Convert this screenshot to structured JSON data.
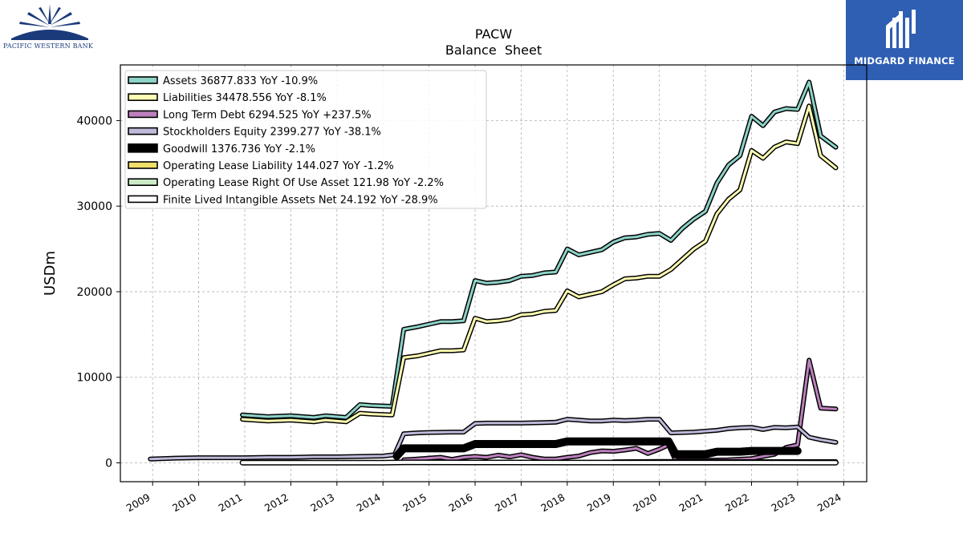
{
  "logos": {
    "left_text": "PACIFIC WESTERN BANK",
    "right_text": "MIDGARD FINANCE",
    "left_color": "#1a3a7a",
    "right_bg": "#2f5fb3"
  },
  "chart_data": {
    "type": "line",
    "title": "PACW",
    "subtitle": "Balance  Sheet",
    "ylabel": "USDm",
    "xlabel": "",
    "xlim": [
      2008.3,
      2024.5
    ],
    "ylim": [
      -2200,
      46500
    ],
    "xticks": [
      2009,
      2010,
      2011,
      2012,
      2013,
      2014,
      2015,
      2016,
      2017,
      2018,
      2019,
      2020,
      2021,
      2022,
      2023,
      2024
    ],
    "yticks": [
      0,
      10000,
      20000,
      30000,
      40000
    ],
    "grid": true,
    "legend_position": "top-left",
    "series": [
      {
        "name": "Assets",
        "legend": "Assets  36877.833 YoY -10.9%",
        "color": "#8dd3c7",
        "width": 3,
        "points": [
          [
            2010.95,
            5600
          ],
          [
            2011.5,
            5400
          ],
          [
            2012,
            5500
          ],
          [
            2012.5,
            5300
          ],
          [
            2012.75,
            5500
          ],
          [
            2013.2,
            5300
          ],
          [
            2013.5,
            6800
          ],
          [
            2013.75,
            6700
          ],
          [
            2014.2,
            6600
          ],
          [
            2014.45,
            15600
          ],
          [
            2014.75,
            15900
          ],
          [
            2015,
            16200
          ],
          [
            2015.25,
            16500
          ],
          [
            2015.5,
            16500
          ],
          [
            2015.75,
            16600
          ],
          [
            2016,
            21300
          ],
          [
            2016.25,
            21000
          ],
          [
            2016.5,
            21100
          ],
          [
            2016.75,
            21300
          ],
          [
            2017,
            21800
          ],
          [
            2017.25,
            21900
          ],
          [
            2017.5,
            22200
          ],
          [
            2017.75,
            22300
          ],
          [
            2018,
            25000
          ],
          [
            2018.25,
            24300
          ],
          [
            2018.5,
            24600
          ],
          [
            2018.75,
            24900
          ],
          [
            2019,
            25800
          ],
          [
            2019.25,
            26300
          ],
          [
            2019.5,
            26400
          ],
          [
            2019.75,
            26700
          ],
          [
            2020,
            26800
          ],
          [
            2020.25,
            26000
          ],
          [
            2020.5,
            27400
          ],
          [
            2020.75,
            28500
          ],
          [
            2021,
            29400
          ],
          [
            2021.25,
            32700
          ],
          [
            2021.5,
            34800
          ],
          [
            2021.75,
            35900
          ],
          [
            2022,
            40500
          ],
          [
            2022.25,
            39400
          ],
          [
            2022.5,
            41000
          ],
          [
            2022.75,
            41400
          ],
          [
            2023,
            41300
          ],
          [
            2023.25,
            44500
          ],
          [
            2023.5,
            38200
          ],
          [
            2023.83,
            36878
          ]
        ]
      },
      {
        "name": "Liabilities",
        "legend": "Liabilities  34478.556 YoY -8.1%",
        "color": "#ffffb3",
        "width": 3,
        "points": [
          [
            2010.95,
            5100
          ],
          [
            2011.5,
            4900
          ],
          [
            2012,
            5000
          ],
          [
            2012.5,
            4800
          ],
          [
            2012.75,
            5000
          ],
          [
            2013.2,
            4800
          ],
          [
            2013.5,
            5800
          ],
          [
            2013.75,
            5700
          ],
          [
            2014.2,
            5600
          ],
          [
            2014.45,
            12300
          ],
          [
            2014.75,
            12500
          ],
          [
            2015,
            12800
          ],
          [
            2015.25,
            13100
          ],
          [
            2015.5,
            13100
          ],
          [
            2015.75,
            13200
          ],
          [
            2016,
            16900
          ],
          [
            2016.25,
            16500
          ],
          [
            2016.5,
            16600
          ],
          [
            2016.75,
            16800
          ],
          [
            2017,
            17300
          ],
          [
            2017.25,
            17400
          ],
          [
            2017.5,
            17700
          ],
          [
            2017.75,
            17800
          ],
          [
            2018,
            20100
          ],
          [
            2018.25,
            19400
          ],
          [
            2018.5,
            19700
          ],
          [
            2018.75,
            20000
          ],
          [
            2019,
            20800
          ],
          [
            2019.25,
            21500
          ],
          [
            2019.5,
            21600
          ],
          [
            2019.75,
            21800
          ],
          [
            2020,
            21800
          ],
          [
            2020.25,
            22600
          ],
          [
            2020.5,
            23800
          ],
          [
            2020.75,
            25000
          ],
          [
            2021,
            25900
          ],
          [
            2021.25,
            29100
          ],
          [
            2021.5,
            30800
          ],
          [
            2021.75,
            31900
          ],
          [
            2022,
            36500
          ],
          [
            2022.25,
            35600
          ],
          [
            2022.5,
            36900
          ],
          [
            2022.75,
            37500
          ],
          [
            2023,
            37300
          ],
          [
            2023.25,
            41700
          ],
          [
            2023.5,
            35900
          ],
          [
            2023.83,
            34479
          ]
        ]
      },
      {
        "name": "Long Term Debt",
        "legend": "Long Term Debt  6294.525 YoY +237.5%",
        "color": "#bc80bd",
        "width": 3,
        "points": [
          [
            2014.45,
            350
          ],
          [
            2014.75,
            450
          ],
          [
            2015,
            550
          ],
          [
            2015.25,
            650
          ],
          [
            2015.5,
            400
          ],
          [
            2015.75,
            650
          ],
          [
            2016,
            750
          ],
          [
            2016.25,
            650
          ],
          [
            2016.5,
            900
          ],
          [
            2016.75,
            700
          ],
          [
            2017,
            950
          ],
          [
            2017.25,
            650
          ],
          [
            2017.5,
            450
          ],
          [
            2017.75,
            450
          ],
          [
            2018,
            650
          ],
          [
            2018.25,
            800
          ],
          [
            2018.5,
            1200
          ],
          [
            2018.75,
            1400
          ],
          [
            2019,
            1350
          ],
          [
            2019.25,
            1500
          ],
          [
            2019.5,
            1700
          ],
          [
            2019.75,
            1100
          ],
          [
            2020,
            1600
          ],
          [
            2020.2,
            2100
          ],
          [
            2020.35,
            300
          ],
          [
            2021,
            300
          ],
          [
            2021.5,
            350
          ],
          [
            2022,
            500
          ],
          [
            2022.5,
            1000
          ],
          [
            2022.75,
            1800
          ],
          [
            2023,
            2100
          ],
          [
            2023.25,
            12000
          ],
          [
            2023.5,
            6400
          ],
          [
            2023.83,
            6295
          ]
        ]
      },
      {
        "name": "Stockholders Equity",
        "legend": "Stockholders Equity  2399.277 YoY -38.1%",
        "color": "#bebada",
        "width": 3,
        "points": [
          [
            2008.95,
            450
          ],
          [
            2009.5,
            550
          ],
          [
            2010,
            600
          ],
          [
            2010.5,
            600
          ],
          [
            2011,
            600
          ],
          [
            2011.5,
            650
          ],
          [
            2012,
            650
          ],
          [
            2012.5,
            700
          ],
          [
            2013,
            700
          ],
          [
            2013.5,
            750
          ],
          [
            2014,
            800
          ],
          [
            2014.25,
            950
          ],
          [
            2014.45,
            3400
          ],
          [
            2014.75,
            3500
          ],
          [
            2015,
            3550
          ],
          [
            2015.5,
            3600
          ],
          [
            2015.75,
            3600
          ],
          [
            2016,
            4600
          ],
          [
            2016.25,
            4650
          ],
          [
            2016.5,
            4650
          ],
          [
            2016.75,
            4650
          ],
          [
            2017,
            4650
          ],
          [
            2017.5,
            4700
          ],
          [
            2017.75,
            4750
          ],
          [
            2018,
            5100
          ],
          [
            2018.25,
            5000
          ],
          [
            2018.5,
            4900
          ],
          [
            2018.75,
            4900
          ],
          [
            2019,
            5000
          ],
          [
            2019.25,
            4950
          ],
          [
            2019.5,
            5000
          ],
          [
            2019.75,
            5100
          ],
          [
            2020,
            5100
          ],
          [
            2020.25,
            3500
          ],
          [
            2020.5,
            3550
          ],
          [
            2020.75,
            3600
          ],
          [
            2021,
            3700
          ],
          [
            2021.25,
            3800
          ],
          [
            2021.5,
            4000
          ],
          [
            2021.75,
            4100
          ],
          [
            2022,
            4150
          ],
          [
            2022.25,
            3900
          ],
          [
            2022.5,
            4150
          ],
          [
            2022.75,
            4100
          ],
          [
            2023,
            4200
          ],
          [
            2023.25,
            3000
          ],
          [
            2023.5,
            2700
          ],
          [
            2023.83,
            2399
          ]
        ]
      },
      {
        "name": "Goodwill",
        "legend": "Goodwill  1376.736 YoY -2.1%",
        "color": "#000000",
        "width": 7,
        "outline": "#000000",
        "points": [
          [
            2014.3,
            800
          ],
          [
            2014.45,
            1700
          ],
          [
            2015,
            1700
          ],
          [
            2015.5,
            1700
          ],
          [
            2015.75,
            1700
          ],
          [
            2016,
            2200
          ],
          [
            2016.5,
            2200
          ],
          [
            2017,
            2200
          ],
          [
            2017.5,
            2200
          ],
          [
            2017.75,
            2200
          ],
          [
            2018,
            2500
          ],
          [
            2018.5,
            2500
          ],
          [
            2019,
            2500
          ],
          [
            2019.5,
            2500
          ],
          [
            2020,
            2500
          ],
          [
            2020.2,
            2500
          ],
          [
            2020.35,
            1000
          ],
          [
            2021,
            1000
          ],
          [
            2021.25,
            1300
          ],
          [
            2021.75,
            1300
          ],
          [
            2022,
            1400
          ],
          [
            2022.5,
            1400
          ],
          [
            2023,
            1400
          ]
        ]
      },
      {
        "name": "Operating Lease Liability",
        "legend": "Operating Lease Liability  144.027 YoY -1.2%",
        "color": "#f0e06a",
        "width": 3,
        "points": [
          [
            2019,
            120
          ],
          [
            2020,
            160
          ],
          [
            2021,
            150
          ],
          [
            2022,
            145
          ],
          [
            2023,
            140
          ],
          [
            2023.83,
            144
          ]
        ]
      },
      {
        "name": "Operating Lease Right Of Use Asset",
        "legend": "Operating Lease Right Of Use Asset  121.98 YoY -2.2%",
        "color": "#ccebc5",
        "width": 3,
        "points": [
          [
            2019,
            100
          ],
          [
            2020,
            140
          ],
          [
            2021,
            130
          ],
          [
            2022,
            125
          ],
          [
            2023,
            120
          ],
          [
            2023.83,
            122
          ]
        ]
      },
      {
        "name": "Finite Lived Intangible Assets Net",
        "legend": "Finite Lived Intangible Assets Net  24.192 YoY -28.9%",
        "color": "#ffffff",
        "width": 4,
        "points": [
          [
            2010.95,
            30
          ],
          [
            2014,
            30
          ],
          [
            2014.5,
            60
          ],
          [
            2016,
            50
          ],
          [
            2018,
            40
          ],
          [
            2020,
            40
          ],
          [
            2022,
            40
          ],
          [
            2023.83,
            24
          ]
        ]
      }
    ]
  }
}
